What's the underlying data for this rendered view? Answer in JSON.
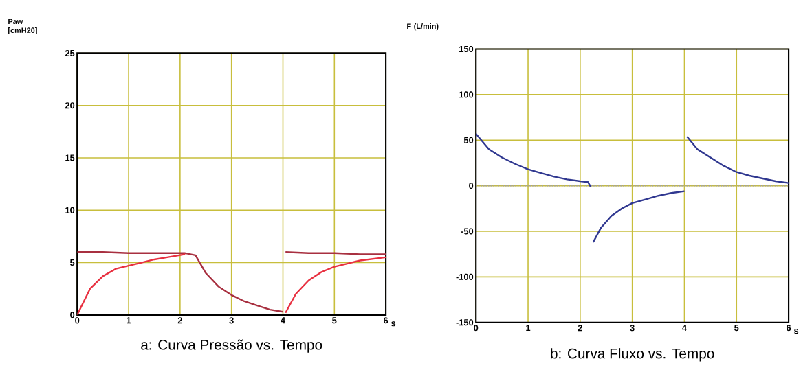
{
  "chart_data": [
    {
      "type": "line",
      "title": "a: Curva Pressão vs. Tempo",
      "ylabel": "Paw [cmH20]",
      "xlabel": "s",
      "xlim": [
        0,
        6
      ],
      "xticks": [
        0,
        1,
        2,
        3,
        4,
        5,
        6
      ],
      "ylim": [
        0,
        25
      ],
      "yticks": [
        0,
        5,
        10,
        15,
        20,
        25
      ],
      "grid": true,
      "marker": "none",
      "line_style": "solid",
      "series": [
        {
          "color": "#a83040",
          "x": [
            0,
            0.5,
            1,
            1.5,
            2.1,
            2.2,
            2.3,
            2.5,
            2.75,
            3,
            3.25,
            3.5,
            3.75,
            4,
            4.02,
            4.05,
            4.5,
            5,
            5.5,
            6
          ],
          "values": [
            6.0,
            6.0,
            5.9,
            5.9,
            5.9,
            5.8,
            5.7,
            4.0,
            2.7,
            1.9,
            1.3,
            0.9,
            0.5,
            0.3,
            null,
            6.0,
            5.9,
            5.9,
            5.8,
            5.8
          ]
        },
        {
          "color": "#e83040",
          "x": [
            0,
            0.25,
            0.5,
            0.75,
            1,
            1.25,
            1.5,
            1.75,
            2.1,
            3,
            4.05,
            4.25,
            4.5,
            4.75,
            5,
            5.25,
            5.5,
            6
          ],
          "values": [
            0,
            2.5,
            3.7,
            4.4,
            4.7,
            5.0,
            5.3,
            5.5,
            5.8,
            null,
            0.2,
            2.0,
            3.3,
            4.1,
            4.6,
            4.9,
            5.2,
            5.5
          ]
        }
      ]
    },
    {
      "type": "line",
      "title": "b: Curva Fluxo vs. Tempo",
      "ylabel": "F (L/min)",
      "xlabel": "s",
      "xlim": [
        0,
        6
      ],
      "xticks": [
        0,
        1,
        2,
        3,
        4,
        5,
        6
      ],
      "ylim": [
        -150,
        150
      ],
      "yticks": [
        -150,
        -100,
        -50,
        0,
        50,
        100,
        150
      ],
      "grid": true,
      "marker": "none",
      "line_style": "solid",
      "ref_lines": [
        {
          "axis": "y",
          "value": 0,
          "color": "#a0a0a8",
          "line_style": "dotted"
        }
      ],
      "series": [
        {
          "color": "#303890",
          "x": [
            0,
            0.25,
            0.5,
            0.75,
            1,
            1.25,
            1.5,
            1.75,
            2,
            2.15,
            2.2,
            2.22,
            2.25,
            2.4,
            2.6,
            2.8,
            3,
            3.25,
            3.5,
            3.75,
            4,
            4.02,
            4.05,
            4.25,
            4.5,
            4.75,
            5,
            5.25,
            5.5,
            5.75,
            6
          ],
          "values": [
            57,
            40,
            31,
            24,
            18,
            14,
            10,
            7,
            5,
            4,
            -1,
            null,
            -62,
            -46,
            -33,
            -25,
            -19,
            -15,
            -11,
            -8,
            -6,
            null,
            54,
            40,
            31,
            22,
            15,
            11,
            8,
            5,
            3
          ]
        }
      ]
    }
  ]
}
